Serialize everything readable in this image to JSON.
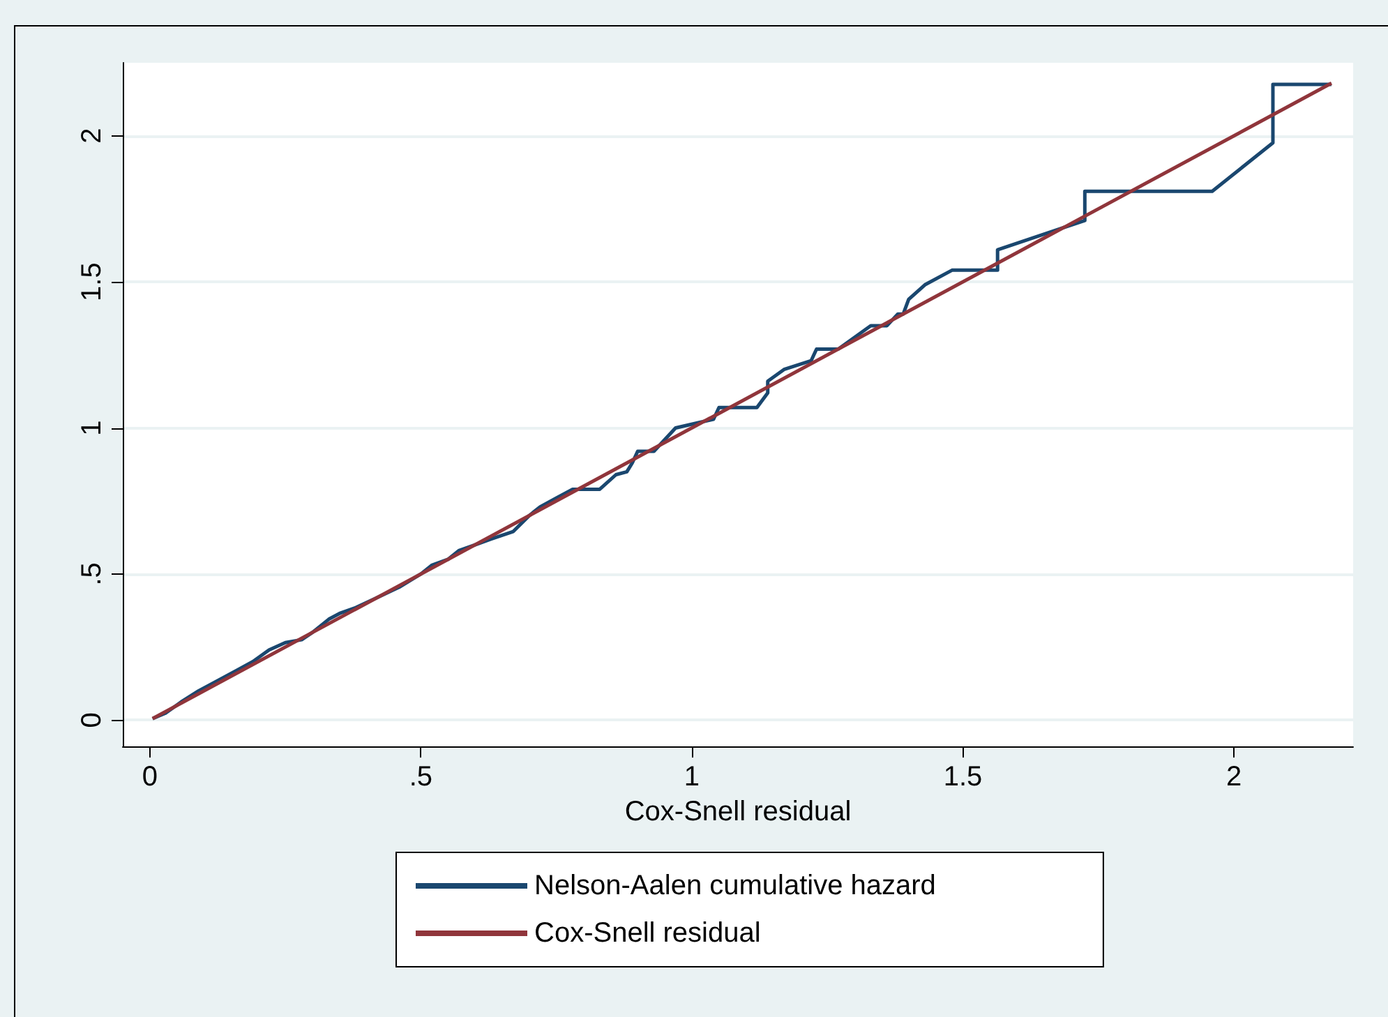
{
  "chart_data": {
    "type": "line",
    "xlabel": "Cox-Snell residual",
    "xlim": [
      -0.05,
      2.22
    ],
    "xticks": [
      0,
      {
        "value": 0.5,
        "label": ".5"
      },
      1,
      {
        "value": 1.5,
        "label": "1.5"
      },
      2
    ],
    "ylim": [
      -0.09,
      2.25
    ],
    "yticks": [
      0,
      {
        "value": 0.5,
        "label": ".5"
      },
      1,
      {
        "value": 1.5,
        "label": "1.5"
      },
      2
    ],
    "grid": "y",
    "legend": "bottom",
    "marker": "none",
    "line_style": "solid",
    "series": [
      {
        "name": "Nelson-Aalen cumulative hazard",
        "color": "#1a476f",
        "x": [
          0.005,
          0.03,
          0.06,
          0.09,
          0.12,
          0.16,
          0.19,
          0.22,
          0.25,
          0.28,
          0.3,
          0.33,
          0.35,
          0.38,
          0.42,
          0.46,
          0.5,
          0.52,
          0.55,
          0.57,
          0.6,
          0.63,
          0.67,
          0.7,
          0.72,
          0.75,
          0.78,
          0.83,
          0.86,
          0.88,
          0.89,
          0.9,
          0.93,
          0.95,
          0.97,
          1.04,
          1.05,
          1.12,
          1.14,
          1.14,
          1.17,
          1.22,
          1.23,
          1.27,
          1.3,
          1.33,
          1.36,
          1.38,
          1.39,
          1.4,
          1.43,
          1.48,
          1.564,
          1.564,
          1.725,
          1.725,
          1.96,
          2.072,
          2.072,
          2.18
        ],
        "values": [
          0.005,
          0.025,
          0.065,
          0.1,
          0.13,
          0.17,
          0.2,
          0.24,
          0.265,
          0.275,
          0.3,
          0.345,
          0.365,
          0.385,
          0.42,
          0.455,
          0.5,
          0.53,
          0.55,
          0.58,
          0.6,
          0.62,
          0.645,
          0.7,
          0.73,
          0.76,
          0.79,
          0.79,
          0.84,
          0.85,
          0.88,
          0.92,
          0.92,
          0.96,
          1.0,
          1.03,
          1.07,
          1.07,
          1.12,
          1.16,
          1.2,
          1.23,
          1.27,
          1.27,
          1.31,
          1.35,
          1.35,
          1.39,
          1.39,
          1.44,
          1.49,
          1.54,
          1.54,
          1.61,
          1.71,
          1.81,
          1.81,
          1.976,
          2.176,
          2.176
        ]
      },
      {
        "name": "Cox-Snell residual",
        "color": "#90353b",
        "x": [
          0.005,
          2.18
        ],
        "values": [
          0.005,
          2.18
        ]
      }
    ]
  }
}
